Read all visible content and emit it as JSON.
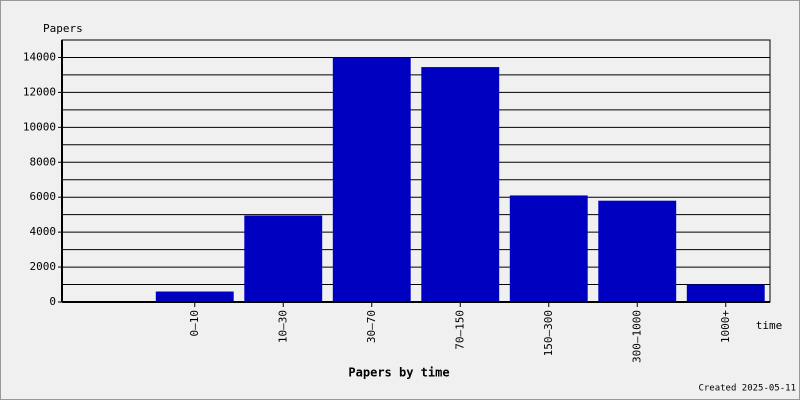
{
  "chart_data": {
    "type": "bar",
    "title": "Papers by time",
    "y_label": "Papers",
    "x_label": "time",
    "footer": "Created 2025-05-11",
    "categories": [
      null,
      "0–10",
      "10–30",
      "30–70",
      "70–150",
      "150–300",
      "300–1000",
      "1000+"
    ],
    "values": [
      null,
      600,
      4950,
      14000,
      13450,
      6100,
      5800,
      1000
    ],
    "color": "#0000c0",
    "ylim": [
      0,
      15000
    ],
    "yticks": [
      0,
      2000,
      4000,
      6000,
      8000,
      10000,
      12000,
      14000
    ],
    "minor_yticks": [
      1000,
      3000,
      5000,
      7000,
      9000,
      11000,
      13000,
      15000
    ],
    "grid": true
  }
}
